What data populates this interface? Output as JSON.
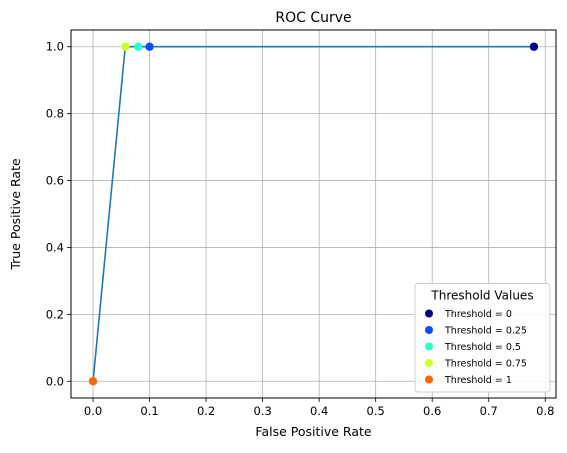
{
  "chart_data": {
    "type": "line",
    "title": "ROC Curve",
    "xlabel": "False Positive Rate",
    "ylabel": "True Positive Rate",
    "xlim": [
      -0.039,
      0.819
    ],
    "ylim": [
      -0.05,
      1.05
    ],
    "xticks": [
      0.0,
      0.1,
      0.2,
      0.3,
      0.4,
      0.5,
      0.6,
      0.7,
      0.8
    ],
    "xtick_labels": [
      "0.0",
      "0.1",
      "0.2",
      "0.3",
      "0.4",
      "0.5",
      "0.6",
      "0.7",
      "0.8"
    ],
    "yticks": [
      0.0,
      0.2,
      0.4,
      0.6,
      0.8,
      1.0
    ],
    "ytick_labels": [
      "0.0",
      "0.2",
      "0.4",
      "0.6",
      "0.8",
      "1.0"
    ],
    "grid": true,
    "line": {
      "color": "#1f77b4",
      "x": [
        0.0,
        0.057,
        0.08,
        0.1,
        0.78
      ],
      "y": [
        0.0,
        1.0,
        1.0,
        1.0,
        1.0
      ]
    },
    "points": [
      {
        "label": "Threshold = 0",
        "x": 0.78,
        "y": 1.0,
        "color": "#00007f"
      },
      {
        "label": "Threshold = 0.25",
        "x": 0.1,
        "y": 1.0,
        "color": "#0c4cff"
      },
      {
        "label": "Threshold = 0.5",
        "x": 0.08,
        "y": 1.0,
        "color": "#29ffcd"
      },
      {
        "label": "Threshold = 0.75",
        "x": 0.057,
        "y": 1.0,
        "color": "#ccff29"
      },
      {
        "label": "Threshold = 1",
        "x": 0.0,
        "y": 0.0,
        "color": "#ff6600"
      }
    ],
    "legend": {
      "title": "Threshold Values",
      "placement": "lower-right"
    }
  }
}
